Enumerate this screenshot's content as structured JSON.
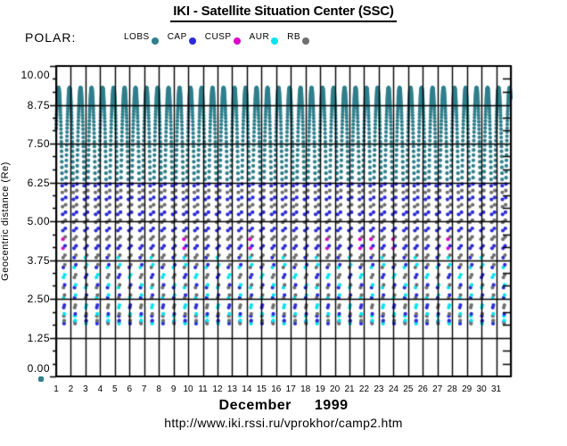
{
  "header": {
    "title": "IKI - Satellite Situation Center (SSC)",
    "satellite_label": "POLAR:"
  },
  "legend": {
    "items": [
      {
        "label": "LOBS",
        "color": "#2F7F8C"
      },
      {
        "label": "CAP",
        "color": "#2B2BD6"
      },
      {
        "label": "CUSP",
        "color": "#DD00CC"
      },
      {
        "label": "AUR",
        "color": "#00E3EE"
      },
      {
        "label": "RB",
        "color": "#6E6E6E"
      }
    ]
  },
  "axes": {
    "y_title": "Geocentric distance (Re)",
    "y_tick_labels": [
      "10.00",
      "8.75",
      "7.50",
      "6.25",
      "5.00",
      "3.75",
      "2.50",
      "1.25",
      "0.00"
    ],
    "x_day_labels": [
      "1",
      "2",
      "3",
      "4",
      "5",
      "6",
      "7",
      "8",
      "9",
      "10",
      "11",
      "12",
      "13",
      "14",
      "15",
      "16",
      "17",
      "18",
      "19",
      "20",
      "21",
      "22",
      "23",
      "24",
      "25",
      "26",
      "27",
      "28",
      "29",
      "30",
      "31"
    ]
  },
  "footer": {
    "month": "December",
    "year": "1999",
    "url": "http://www.iki.rssi.ru/vprokhor/camp2.htm"
  },
  "chart_data": {
    "type": "scatter",
    "title": "IKI - Satellite Situation Center (SSC)",
    "subtitle": "POLAR satellite region occupancy vs geocentric distance",
    "xlabel": "December 1999",
    "ylabel": "Geocentric distance (Re)",
    "x_range_days": [
      0,
      31
    ],
    "ylim": [
      0,
      10
    ],
    "y_major_step": 1.25,
    "y_minor_per_major": 3,
    "grid": "both",
    "legend_position": "top",
    "frame_color": "#000000",
    "series": [
      {
        "name": "LOBS",
        "color": "#2F7F8C",
        "r_band_re": [
          6.3,
          9.3
        ]
      },
      {
        "name": "CAP",
        "color": "#2B2BD6",
        "r_band_re": [
          1.7,
          6.3
        ]
      },
      {
        "name": "CUSP",
        "color": "#DD00CC",
        "r_band_re": [
          3.85,
          4.65
        ]
      },
      {
        "name": "AUR",
        "color": "#00E3EE",
        "r_band_re": [
          1.9,
          3.9
        ]
      },
      {
        "name": "RB",
        "color": "#6E6E6E",
        "r_band_re": [
          1.7,
          6.3
        ]
      }
    ],
    "region_thresholds_re": {
      "lobes_above": 6.3,
      "cap_rb_above": 3.9,
      "aur_mix_above": 2.7
    },
    "orbit_model": {
      "period_days": 0.75,
      "perigee_re": 1.7,
      "apogee_re": 9.3,
      "first_apogee_day": 0.164,
      "samples_per_orbit": 100
    }
  }
}
